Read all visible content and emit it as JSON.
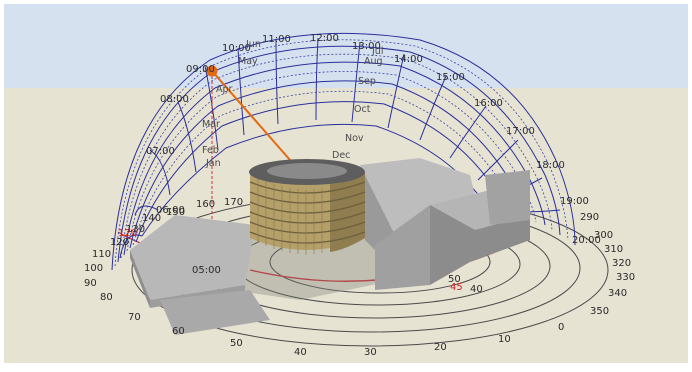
{
  "colors": {
    "sky": "#d5e1ef",
    "ground": "#e7e3d3",
    "arc": "#2b2f9b",
    "sun": "#e46a10",
    "ring": "#4a4a4a",
    "ring_red": "#d0303a",
    "building": "#b3b3b3",
    "building_dark": "#8d8d8d",
    "tower": "#b6a06a"
  },
  "sun_icon": "sun-marker-icon",
  "hour_labels": [
    "05:00",
    "06:00",
    "07:00",
    "08:00",
    "09:00",
    "10:00",
    "11:00",
    "12:00",
    "13:00",
    "14:00",
    "15:00",
    "16:00",
    "17:00",
    "18:00",
    "19:00",
    "20:00"
  ],
  "month_labels": [
    "Jan",
    "Feb",
    "Mar",
    "Apr",
    "May",
    "Jun",
    "Jul",
    "Aug",
    "Sep",
    "Oct",
    "Nov",
    "Dec"
  ],
  "azimuth_left": [
    "40",
    "50",
    "60",
    "70",
    "80",
    "90",
    "100",
    "110",
    "120",
    "130",
    "140",
    "150",
    "160",
    "170"
  ],
  "azimuth_right": [
    "0",
    "10",
    "20",
    "30",
    "40",
    "50",
    "290",
    "300",
    "310",
    "320",
    "330",
    "340",
    "350"
  ],
  "azimuth_left_red": "120",
  "azimuth_right_red": "45"
}
